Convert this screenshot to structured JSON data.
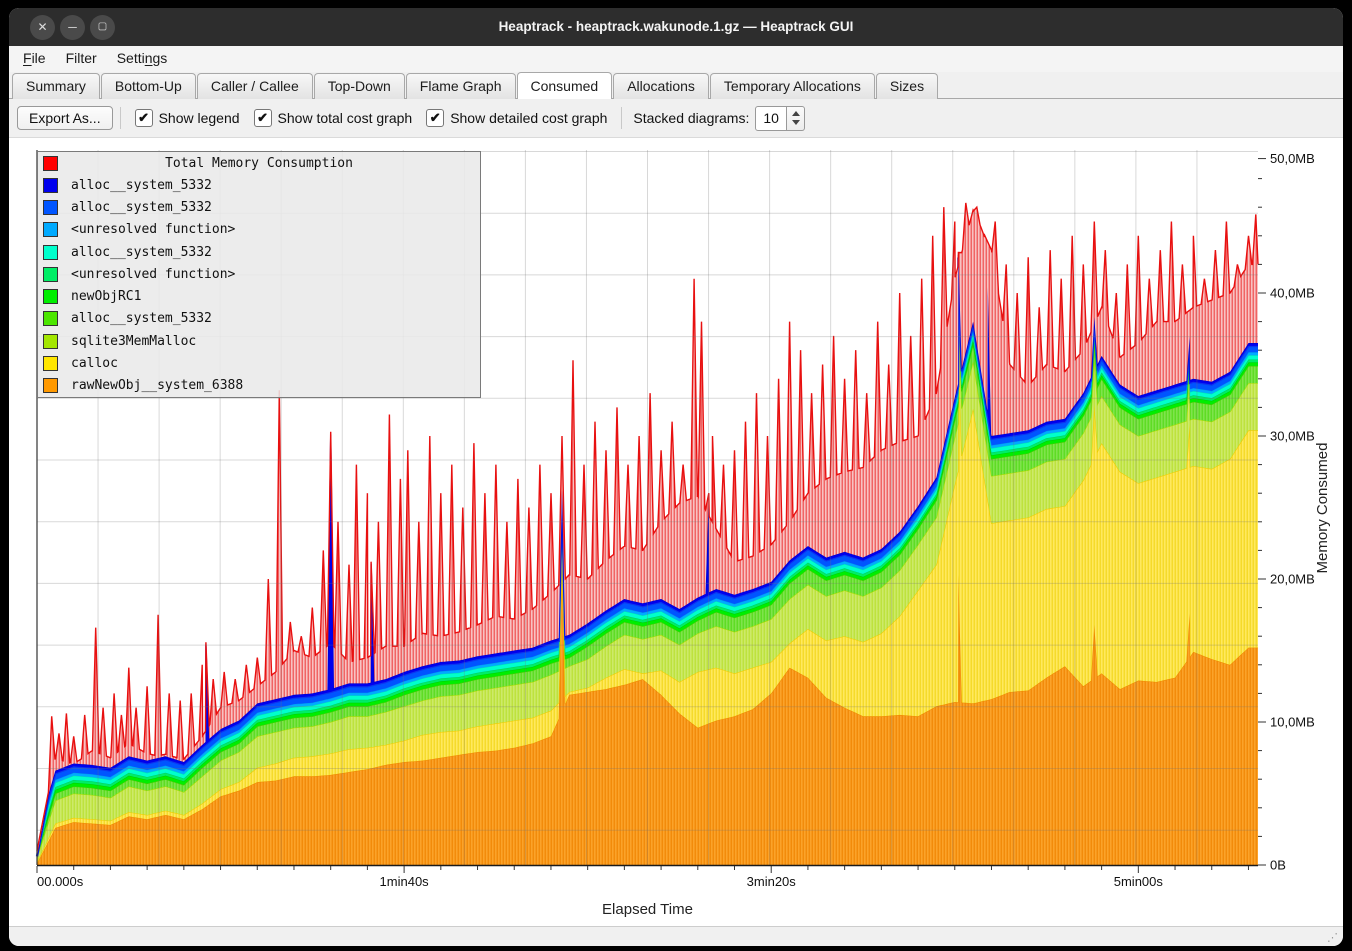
{
  "window": {
    "title": "Heaptrack - heaptrack.wakunode.1.gz — Heaptrack GUI"
  },
  "icons": {
    "close": "✕",
    "minimize": "─",
    "maximize": "▢",
    "checkmark": "✔",
    "resize_grip": "⋰"
  },
  "menu": {
    "items": [
      {
        "label": "File",
        "accel_index": 0
      },
      {
        "label": "Filter",
        "accel_index": -1
      },
      {
        "label": "Settings",
        "accel_index": 5
      }
    ]
  },
  "tabs": {
    "active_index": 5,
    "items": [
      "Summary",
      "Bottom-Up",
      "Caller / Callee",
      "Top-Down",
      "Flame Graph",
      "Consumed",
      "Allocations",
      "Temporary Allocations",
      "Sizes"
    ]
  },
  "toolbar": {
    "export_label": "Export As...",
    "checkboxes": [
      {
        "label": "Show legend",
        "checked": true
      },
      {
        "label": "Show total cost graph",
        "checked": true
      },
      {
        "label": "Show detailed cost graph",
        "checked": true
      }
    ],
    "stacked_label": "Stacked diagrams:",
    "stacked_value": "10"
  },
  "legend": {
    "items": [
      {
        "color": "#ff0000",
        "label": "Total Memory Consumption",
        "is_title": true
      },
      {
        "color": "#0000ee",
        "label": "alloc__system_5332"
      },
      {
        "color": "#0055ff",
        "label": "alloc__system_5332"
      },
      {
        "color": "#00aaff",
        "label": "<unresolved function>"
      },
      {
        "color": "#00ffcc",
        "label": "alloc__system_5332"
      },
      {
        "color": "#00ee66",
        "label": "<unresolved function>"
      },
      {
        "color": "#00ee00",
        "label": "newObjRC1"
      },
      {
        "color": "#4ce600",
        "label": "alloc__system_5332"
      },
      {
        "color": "#a3e600",
        "label": "sqlite3MemMalloc"
      },
      {
        "color": "#ffe600",
        "label": "calloc"
      },
      {
        "color": "#ff9900",
        "label": "rawNewObj__system_6388"
      }
    ]
  },
  "chart_data": {
    "type": "area",
    "stacked": true,
    "title": "Total Memory Consumption",
    "xlabel": "Elapsed Time",
    "ylabel": "Memory Consumed",
    "x_unit": "seconds",
    "x_max": 332.6,
    "ylim_mb": [
      0,
      50
    ],
    "x_ticks": [
      [
        0,
        "00.000s"
      ],
      [
        100,
        "1min40s"
      ],
      [
        200,
        "3min20s"
      ],
      [
        300,
        "5min00s"
      ]
    ],
    "x_minor_step": 10,
    "y_ticks": [
      [
        0,
        "0B"
      ],
      [
        10,
        "10,0MB"
      ],
      [
        20,
        "20,0MB"
      ],
      [
        30,
        "30,0MB"
      ],
      [
        40,
        "40,0MB"
      ],
      [
        50,
        "50,0MB"
      ]
    ],
    "y_minor_step": 2,
    "grid": true,
    "legend_position": "top-left",
    "t": [
      0,
      5,
      10,
      15,
      20,
      25,
      30,
      35,
      40,
      45,
      50,
      55,
      60,
      65,
      70,
      75,
      80,
      85,
      90,
      95,
      100,
      105,
      110,
      115,
      120,
      125,
      130,
      135,
      140,
      145,
      150,
      155,
      160,
      165,
      170,
      175,
      180,
      185,
      190,
      195,
      200,
      205,
      210,
      215,
      220,
      225,
      230,
      235,
      240,
      245,
      250,
      255,
      260,
      265,
      270,
      275,
      280,
      285,
      290,
      295,
      300,
      305,
      310,
      315,
      320,
      325,
      330
    ],
    "series": [
      {
        "name": "rawNewObj__system_6388",
        "color": "#ff9900",
        "values": [
          0.1,
          2.6,
          3.0,
          2.9,
          2.8,
          3.4,
          3.2,
          3.5,
          3.2,
          3.9,
          4.8,
          5.2,
          5.8,
          5.9,
          6.2,
          6.2,
          6.3,
          6.5,
          6.7,
          7.0,
          7.2,
          7.3,
          7.5,
          7.7,
          7.9,
          8.0,
          8.2,
          8.5,
          9.0,
          11.9,
          12.1,
          12.3,
          12.6,
          13.0,
          11.9,
          10.6,
          9.6,
          10.1,
          10.4,
          10.9,
          12.0,
          13.8,
          13.1,
          11.7,
          11.0,
          10.4,
          10.4,
          10.5,
          10.4,
          11.1,
          11.4,
          11.3,
          11.6,
          12.1,
          12.2,
          13.1,
          13.9,
          12.5,
          13.4,
          12.3,
          12.9,
          12.8,
          13.1,
          14.9,
          14.4,
          14.0,
          15.2
        ],
        "spikes": [
          [
            143,
            21.0
          ],
          [
            251,
            20.3
          ],
          [
            288,
            16.8
          ],
          [
            314,
            17.6
          ]
        ]
      },
      {
        "name": "calloc",
        "color": "#ffe600",
        "values": [
          0.1,
          0.3,
          0.3,
          0.3,
          0.3,
          0.3,
          0.3,
          0.3,
          0.3,
          0.4,
          0.5,
          0.6,
          1.0,
          1.2,
          1.3,
          1.4,
          1.5,
          1.6,
          1.5,
          1.4,
          1.5,
          1.8,
          1.8,
          1.7,
          1.8,
          1.9,
          1.9,
          1.8,
          1.8,
          0.2,
          0.3,
          0.8,
          1.1,
          0.4,
          1.7,
          2.2,
          3.9,
          3.7,
          3.0,
          2.9,
          2.2,
          1.7,
          3.4,
          4.0,
          5.0,
          5.2,
          5.8,
          6.9,
          8.8,
          9.9,
          15.2,
          20.6,
          12.3,
          12.0,
          12.1,
          11.8,
          11.2,
          14.4,
          16.1,
          15.2,
          13.8,
          14.3,
          14.4,
          13.0,
          13.3,
          14.4,
          15.2
        ]
      },
      {
        "name": "sqlite3MemMalloc",
        "color": "#a3e600",
        "values": [
          0.3,
          1.6,
          1.7,
          1.7,
          1.6,
          1.8,
          1.7,
          1.7,
          1.6,
          1.9,
          2.0,
          2.1,
          2.2,
          2.2,
          2.1,
          2.1,
          2.2,
          2.3,
          2.2,
          2.3,
          2.4,
          2.4,
          2.5,
          2.5,
          2.5,
          2.5,
          2.5,
          2.5,
          2.5,
          1.8,
          2.0,
          2.2,
          2.4,
          2.4,
          2.5,
          2.6,
          2.7,
          2.9,
          2.9,
          2.9,
          3.0,
          3.1,
          3.1,
          3.1,
          3.2,
          3.2,
          3.2,
          3.2,
          3.2,
          3.3,
          3.3,
          3.3,
          3.3,
          3.3,
          3.3,
          3.3,
          3.3,
          3.3,
          3.3,
          3.3,
          3.3,
          3.3,
          3.3,
          3.3,
          3.3,
          3.3,
          3.3
        ]
      },
      {
        "name": "alloc__system_5332",
        "color": "#4ce600",
        "values": [
          0.1,
          0.5,
          0.5,
          0.5,
          0.5,
          0.5,
          0.5,
          0.5,
          0.5,
          0.6,
          0.6,
          0.6,
          0.7,
          0.7,
          0.7,
          0.7,
          0.7,
          0.7,
          0.7,
          0.7,
          0.8,
          0.8,
          0.8,
          0.8,
          0.8,
          0.8,
          0.8,
          0.8,
          0.8,
          0.6,
          0.9,
          0.9,
          0.9,
          0.9,
          0.9,
          0.9,
          0.9,
          1.0,
          1.0,
          1.0,
          1.0,
          1.1,
          1.1,
          1.1,
          1.1,
          1.1,
          1.1,
          1.1,
          1.1,
          1.2,
          1.2,
          1.2,
          1.2,
          1.2,
          1.2,
          1.2,
          1.2,
          1.2,
          1.2,
          1.2,
          1.2,
          1.2,
          1.2,
          1.2,
          1.2,
          1.2,
          1.2
        ]
      },
      {
        "name": "newObjRC1",
        "color": "#00ee00",
        "const": 0.25
      },
      {
        "name": "<unresolved function>",
        "color": "#00ee66",
        "const": 0.2
      },
      {
        "name": "alloc__system_5332",
        "color": "#00ffcc",
        "const": 0.3
      },
      {
        "name": "<unresolved function>",
        "color": "#00aaff",
        "const": 0.2
      },
      {
        "name": "alloc__system_5332",
        "color": "#0055ff",
        "const": 0.45
      },
      {
        "name": "alloc__system_5332",
        "color": "#0000ee",
        "const": 0.2,
        "spikes": [
          [
            46,
            7.0
          ],
          [
            80,
            18.0
          ],
          [
            91,
            8.5
          ],
          [
            183,
            7.0
          ],
          [
            259,
            9.0
          ]
        ]
      }
    ],
    "total": {
      "name": "Total Memory Consumption",
      "color": "#ff0000",
      "base": [
        1.0,
        7.5,
        7.0,
        8.0,
        7.5,
        8.5,
        7.8,
        7.5,
        7.4,
        9.0,
        11.0,
        11.5,
        12.5,
        13.5,
        15.0,
        14.5,
        15.5,
        14.2,
        14.5,
        15.3,
        15.3,
        16.2,
        16.0,
        16.3,
        16.8,
        17.4,
        17.2,
        17.9,
        19.0,
        20.3,
        20.0,
        21.3,
        22.3,
        22.0,
        24.0,
        25.3,
        25.8,
        23.5,
        21.2,
        21.6,
        22.4,
        24.0,
        26.0,
        27.0,
        27.5,
        27.8,
        29.0,
        29.6,
        30.0,
        33.0,
        41.0,
        45.8,
        43.0,
        35.0,
        33.5,
        35.0,
        34.5,
        36.0,
        39.0,
        35.5,
        36.5,
        38.0,
        38.0,
        39.0,
        39.5,
        40.0,
        42.0
      ],
      "spikes": [
        [
          4,
          10.4
        ],
        [
          6,
          9.2
        ],
        [
          8,
          10.6
        ],
        [
          10,
          9.0
        ],
        [
          13,
          10.5
        ],
        [
          16,
          16.6
        ],
        [
          18,
          11
        ],
        [
          21,
          12
        ],
        [
          23,
          10.5
        ],
        [
          25,
          13.8
        ],
        [
          27,
          11
        ],
        [
          30,
          12.5
        ],
        [
          33,
          17.5
        ],
        [
          36,
          12
        ],
        [
          39,
          11.5
        ],
        [
          42,
          12
        ],
        [
          45,
          14
        ],
        [
          48,
          13
        ],
        [
          51,
          13.5
        ],
        [
          54,
          13
        ],
        [
          57,
          14
        ],
        [
          60,
          14.5
        ],
        [
          63,
          20
        ],
        [
          66,
          33.2
        ],
        [
          69,
          17
        ],
        [
          72,
          16
        ],
        [
          75,
          18
        ],
        [
          78,
          22
        ],
        [
          80,
          30
        ],
        [
          82,
          24
        ],
        [
          85,
          21
        ],
        [
          87,
          28
        ],
        [
          90,
          26
        ],
        [
          93,
          24
        ],
        [
          96,
          31.5
        ],
        [
          99,
          27
        ],
        [
          101,
          29
        ],
        [
          104,
          24
        ],
        [
          107,
          30
        ],
        [
          110,
          26
        ],
        [
          113,
          28
        ],
        [
          116,
          25
        ],
        [
          119,
          29.5
        ],
        [
          122,
          26
        ],
        [
          125,
          28
        ],
        [
          128,
          24
        ],
        [
          131,
          27
        ],
        [
          134,
          25
        ],
        [
          137,
          28
        ],
        [
          140,
          26
        ],
        [
          143,
          30
        ],
        [
          146,
          35.3
        ],
        [
          149,
          28
        ],
        [
          152,
          31
        ],
        [
          155,
          29
        ],
        [
          158,
          32
        ],
        [
          161,
          28
        ],
        [
          164,
          30
        ],
        [
          167,
          33
        ],
        [
          170,
          29
        ],
        [
          173,
          31
        ],
        [
          176,
          28
        ],
        [
          179,
          41
        ],
        [
          181,
          38
        ],
        [
          184,
          30
        ],
        [
          187,
          28
        ],
        [
          190,
          29
        ],
        [
          193,
          31
        ],
        [
          196,
          33
        ],
        [
          199,
          30
        ],
        [
          202,
          34
        ],
        [
          205,
          38
        ],
        [
          208,
          36
        ],
        [
          211,
          33
        ],
        [
          214,
          35
        ],
        [
          217,
          37
        ],
        [
          220,
          34
        ],
        [
          223,
          36
        ],
        [
          226,
          33
        ],
        [
          229,
          38
        ],
        [
          232,
          35
        ],
        [
          235,
          40
        ],
        [
          238,
          37
        ],
        [
          241,
          41
        ],
        [
          244,
          44
        ],
        [
          247,
          46
        ],
        [
          250,
          45
        ],
        [
          253,
          46.3
        ],
        [
          256,
          46
        ],
        [
          258,
          44
        ],
        [
          261,
          45
        ],
        [
          264,
          42
        ],
        [
          267,
          40
        ],
        [
          270,
          42.5
        ],
        [
          273,
          39
        ],
        [
          276,
          43
        ],
        [
          279,
          41
        ],
        [
          282,
          44
        ],
        [
          285,
          42
        ],
        [
          288,
          45
        ],
        [
          291,
          43
        ],
        [
          294,
          40
        ],
        [
          297,
          42
        ],
        [
          300,
          44
        ],
        [
          303,
          41
        ],
        [
          306,
          43
        ],
        [
          309,
          45
        ],
        [
          312,
          42
        ],
        [
          315,
          44
        ],
        [
          318,
          41
        ],
        [
          321,
          43
        ],
        [
          324,
          45
        ],
        [
          327,
          42
        ],
        [
          330,
          44
        ],
        [
          332,
          45.5
        ]
      ]
    }
  }
}
